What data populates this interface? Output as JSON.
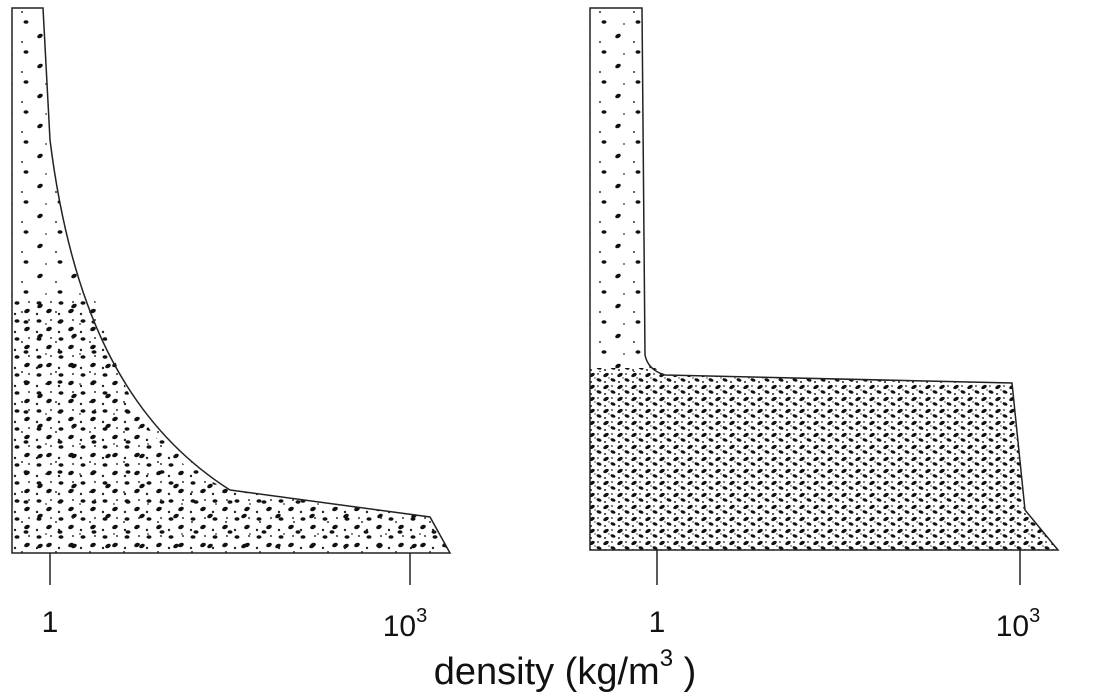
{
  "panels": [
    {
      "ticks": [
        "1",
        {
          "base": "10",
          "exponent": "3"
        }
      ]
    },
    {
      "ticks": [
        "1",
        {
          "base": "10",
          "exponent": "3"
        }
      ]
    }
  ],
  "axis_label": {
    "text": "density (kg/m",
    "exponent": "3",
    "close": " )"
  }
}
